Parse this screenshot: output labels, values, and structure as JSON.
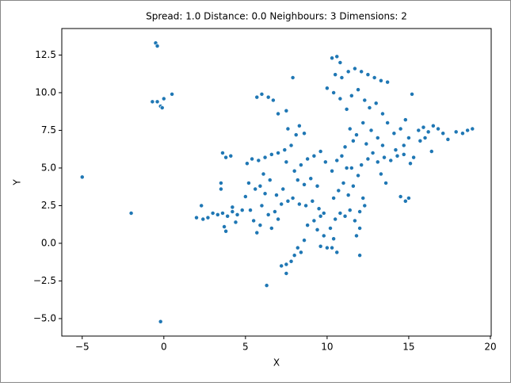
{
  "chart_data": {
    "type": "scatter",
    "title": "Spread: 1.0 Distance: 0.0 Neighbours: 3 Dimensions: 2",
    "x_label": "X",
    "y_label": "Y",
    "color": "#1f77b4",
    "xlim": [
      -6.25,
      20.05
    ],
    "ylim": [
      -6.16,
      14.26
    ],
    "xticks": [
      {
        "value": -5,
        "label": "−5"
      },
      0,
      5,
      10,
      15,
      20
    ],
    "yticks": [
      {
        "value": -5,
        "label": "−5.0"
      },
      {
        "value": -2.5,
        "label": "−2.5"
      },
      {
        "value": 0,
        "label": "0.0"
      },
      {
        "value": 2.5,
        "label": "2.5"
      },
      {
        "value": 5,
        "label": "5.0"
      },
      {
        "value": 7.5,
        "label": "7.5"
      },
      {
        "value": 10,
        "label": "10.0"
      },
      {
        "value": 12.5,
        "label": "12.5"
      }
    ],
    "x": [
      -5,
      -2,
      -0.2,
      -0.5,
      -0.4,
      -0.7,
      -0.4,
      -0.2,
      0,
      0.5,
      -0.1,
      6.3,
      7.5,
      7.8,
      7.2,
      8.0,
      8.2,
      8.6,
      7.5,
      8.4,
      12.0,
      10.3,
      10.6,
      9.6,
      10.0,
      10.4,
      9.8,
      2.0,
      2.4,
      2.7,
      3.0,
      3.3,
      3.6,
      3.9,
      4.2,
      4.5,
      4.8,
      2.3,
      3.7,
      3.8,
      4.4,
      4.2,
      3.5,
      3.5,
      3.6,
      3.8,
      4.1,
      5.0,
      5.3,
      5.5,
      5.7,
      5.9,
      6.0,
      6.2,
      6.4,
      6.6,
      6.8,
      7.0,
      7.2,
      5.2,
      5.6,
      5.9,
      6.1,
      6.5,
      6.9,
      7.3,
      7.6,
      5.1,
      5.4,
      5.8,
      6.2,
      6.6,
      7.0,
      7.4,
      7.8,
      8.1,
      7.6,
      8.3,
      8.6,
      7.5,
      8.0,
      8.4,
      8.8,
      9.2,
      9.6,
      9.9,
      8.2,
      8.6,
      9.0,
      9.4,
      7.9,
      8.3,
      8.7,
      9.1,
      9.5,
      9.8,
      9.2,
      8.8,
      9.4,
      9.6,
      10.2,
      10.5,
      10.8,
      11.1,
      11.4,
      11.7,
      12.0,
      12.3,
      10.4,
      10.7,
      11.0,
      11.3,
      11.6,
      11.9,
      12.2,
      10.3,
      10.6,
      10.9,
      11.2,
      11.5,
      12.1,
      12.5,
      12.8,
      13.1,
      13.5,
      13.9,
      14.3,
      14.7,
      13.3,
      13.6,
      14.5,
      14.8,
      15.0,
      11.8,
      12.0,
      10.0,
      10.3,
      10.6,
      10.8,
      10.5,
      10.9,
      11.3,
      11.7,
      12.1,
      12.5,
      12.9,
      13.3,
      13.7,
      10.4,
      10.8,
      11.2,
      11.5,
      11.9,
      12.3,
      12.6,
      13.0,
      13.4,
      13.7,
      11.4,
      11.8,
      12.2,
      12.7,
      13.1,
      13.4,
      11.1,
      11.6,
      12.4,
      14.1,
      14.5,
      14.8,
      15.2,
      14.2,
      14.7,
      15.0,
      15.6,
      15.9,
      16.2,
      16.5,
      16.8,
      17.1,
      17.4,
      16.0,
      16.4,
      15.7,
      17.9,
      18.3,
      18.6,
      18.9,
      15.3,
      15.1,
      5.7,
      6.0,
      6.4,
      6.7,
      7.0,
      7.5,
      7.9
    ],
    "values": [
      4.4,
      2.0,
      -5.2,
      13.3,
      13.1,
      9.4,
      9.4,
      9.1,
      9.6,
      9.9,
      9.0,
      -2.8,
      -1.4,
      -1.2,
      -1.5,
      -0.8,
      -0.3,
      0.2,
      -2.0,
      -0.6,
      -0.8,
      -0.3,
      -0.6,
      -0.2,
      -0.3,
      0.3,
      0.5,
      1.7,
      1.6,
      1.7,
      2.0,
      1.9,
      2.0,
      1.8,
      2.1,
      1.9,
      2.2,
      2.5,
      1.1,
      0.8,
      1.4,
      2.4,
      4.0,
      3.6,
      6.0,
      5.7,
      5.8,
      3.1,
      2.2,
      1.5,
      0.7,
      1.2,
      2.5,
      3.3,
      1.9,
      1.0,
      2.1,
      1.6,
      2.6,
      4.0,
      3.6,
      3.8,
      4.6,
      4.2,
      3.2,
      3.6,
      2.8,
      5.3,
      5.6,
      5.5,
      5.7,
      5.9,
      6.0,
      6.2,
      6.5,
      7.2,
      7.6,
      7.8,
      7.3,
      5.4,
      4.8,
      5.2,
      5.6,
      5.8,
      6.1,
      5.4,
      4.2,
      3.9,
      4.3,
      3.8,
      3.0,
      2.6,
      2.5,
      2.8,
      2.3,
      2.0,
      1.5,
      1.2,
      0.9,
      1.8,
      1.0,
      1.6,
      2.0,
      1.8,
      2.2,
      1.5,
      2.1,
      2.5,
      3.0,
      3.5,
      4.0,
      3.2,
      3.8,
      4.5,
      3.0,
      4.8,
      5.5,
      5.8,
      5.0,
      5.0,
      5.2,
      5.6,
      6.0,
      5.4,
      5.7,
      5.5,
      5.8,
      5.9,
      4.6,
      4.0,
      3.1,
      2.8,
      3.0,
      0.5,
      1.0,
      10.3,
      12.3,
      12.4,
      12.0,
      11.2,
      11.0,
      11.4,
      11.6,
      11.4,
      11.2,
      11.0,
      10.8,
      10.7,
      10.0,
      9.6,
      8.9,
      9.8,
      10.2,
      9.5,
      9.0,
      9.3,
      8.6,
      8.0,
      7.6,
      7.2,
      8.0,
      7.5,
      7.0,
      6.5,
      6.4,
      6.8,
      6.6,
      7.3,
      7.6,
      8.2,
      9.9,
      6.2,
      6.5,
      7.0,
      7.5,
      7.7,
      7.4,
      7.8,
      7.6,
      7.3,
      6.9,
      7.0,
      6.1,
      6.8,
      7.4,
      7.3,
      7.5,
      7.6,
      5.7,
      5.3,
      9.7,
      9.9,
      9.7,
      9.5,
      8.6,
      8.8,
      11.0
    ]
  }
}
